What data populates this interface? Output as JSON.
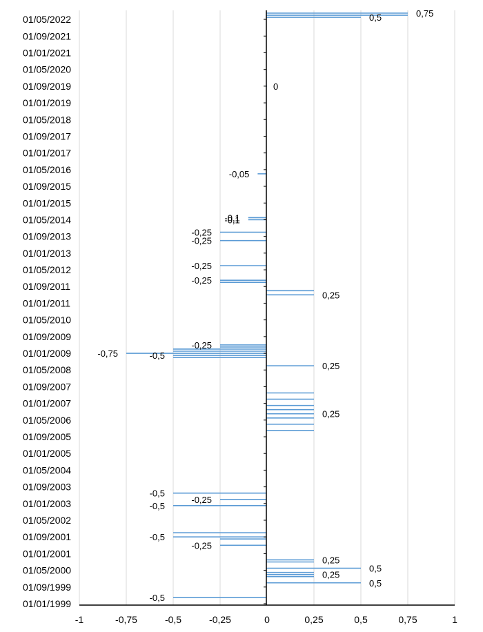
{
  "chart_data": {
    "type": "bar",
    "orientation": "horizontal",
    "title": "",
    "xlabel": "",
    "ylabel": "",
    "xlim": [
      -1,
      1
    ],
    "ylim": [
      "01/01/1999",
      "01/08/2022"
    ],
    "grid": "vertical",
    "legend": "none",
    "colors": {
      "bar": "#5B9BD5",
      "grid": "#D9D9D9",
      "axis": "#000000",
      "text": "#000000"
    },
    "x_tick_labels": [
      "-1",
      "-0,75",
      "-0,5",
      "-0,25",
      "0",
      "0,25",
      "0,5",
      "0,75",
      "1"
    ],
    "y_tick_labels": [
      "01/05/2022",
      "01/09/2021",
      "01/01/2021",
      "01/05/2020",
      "01/09/2019",
      "01/01/2019",
      "01/05/2018",
      "01/09/2017",
      "01/01/2017",
      "01/05/2016",
      "01/09/2015",
      "01/01/2015",
      "01/05/2014",
      "01/09/2013",
      "01/01/2013",
      "01/05/2012",
      "01/09/2011",
      "01/01/2011",
      "01/05/2010",
      "01/09/2009",
      "01/01/2009",
      "01/05/2008",
      "01/09/2007",
      "01/01/2007",
      "01/05/2006",
      "01/09/2005",
      "01/01/2005",
      "01/05/2004",
      "01/09/2003",
      "01/01/2003",
      "01/05/2002",
      "01/09/2001",
      "01/01/2001",
      "01/05/2000",
      "01/09/1999",
      "01/01/1999"
    ],
    "points": [
      {
        "date": "01/08/2022",
        "value": 0.75,
        "label": "0,75"
      },
      {
        "date": "01/07/2022",
        "value": 0.75,
        "label": ""
      },
      {
        "date": "01/06/2022",
        "value": 0.5,
        "label": "0,5"
      },
      {
        "date": "01/09/2019",
        "value": 0,
        "label": "0"
      },
      {
        "date": "01/03/2016",
        "value": -0.05,
        "label": "-0,05"
      },
      {
        "date": "01/06/2014",
        "value": -0.1,
        "label": "-0,1"
      },
      {
        "date": "01/05/2014",
        "value": -0.1,
        "label": "-0,1"
      },
      {
        "date": "01/11/2013",
        "value": -0.25,
        "label": "-0,25"
      },
      {
        "date": "01/07/2013",
        "value": -0.25,
        "label": "-0,25"
      },
      {
        "date": "01/07/2012",
        "value": -0.25,
        "label": "-0,25"
      },
      {
        "date": "01/12/2011",
        "value": -0.25,
        "label": "-0,25"
      },
      {
        "date": "01/11/2011",
        "value": -0.25,
        "label": ""
      },
      {
        "date": "01/07/2011",
        "value": 0.25,
        "label": ""
      },
      {
        "date": "01/05/2011",
        "value": 0.25,
        "label": "0,25"
      },
      {
        "date": "01/05/2009",
        "value": -0.25,
        "label": "-0,25"
      },
      {
        "date": "01/04/2009",
        "value": -0.25,
        "label": ""
      },
      {
        "date": "01/03/2009",
        "value": -0.5,
        "label": ""
      },
      {
        "date": "01/02/2009",
        "value": -0.5,
        "label": ""
      },
      {
        "date": "01/01/2009",
        "value": -0.75,
        "label": "-0,75"
      },
      {
        "date": "01/12/2008",
        "value": -0.5,
        "label": "-0,5"
      },
      {
        "date": "01/11/2008",
        "value": -0.5,
        "label": ""
      },
      {
        "date": "01/07/2008",
        "value": 0.25,
        "label": "0,25"
      },
      {
        "date": "01/06/2007",
        "value": 0.25,
        "label": ""
      },
      {
        "date": "01/03/2007",
        "value": 0.25,
        "label": ""
      },
      {
        "date": "01/12/2006",
        "value": 0.25,
        "label": ""
      },
      {
        "date": "01/10/2006",
        "value": 0.25,
        "label": ""
      },
      {
        "date": "01/08/2006",
        "value": 0.25,
        "label": "0,25"
      },
      {
        "date": "01/06/2006",
        "value": 0.25,
        "label": ""
      },
      {
        "date": "01/03/2006",
        "value": 0.25,
        "label": ""
      },
      {
        "date": "01/12/2005",
        "value": 0.25,
        "label": ""
      },
      {
        "date": "01/06/2003",
        "value": -0.5,
        "label": "-0,5"
      },
      {
        "date": "01/03/2003",
        "value": -0.25,
        "label": "-0,25"
      },
      {
        "date": "01/12/2002",
        "value": -0.5,
        "label": "-0,5"
      },
      {
        "date": "01/11/2001",
        "value": -0.5,
        "label": ""
      },
      {
        "date": "01/09/2001",
        "value": -0.5,
        "label": "-0,5"
      },
      {
        "date": "01/08/2001",
        "value": -0.25,
        "label": ""
      },
      {
        "date": "01/05/2001",
        "value": -0.25,
        "label": "-0,25"
      },
      {
        "date": "01/10/2000",
        "value": 0.25,
        "label": "0,25"
      },
      {
        "date": "01/09/2000",
        "value": 0.25,
        "label": ""
      },
      {
        "date": "01/06/2000",
        "value": 0.5,
        "label": "0,5"
      },
      {
        "date": "01/04/2000",
        "value": 0.25,
        "label": ""
      },
      {
        "date": "01/03/2000",
        "value": 0.25,
        "label": "0,25"
      },
      {
        "date": "01/02/2000",
        "value": 0.25,
        "label": ""
      },
      {
        "date": "01/11/1999",
        "value": 0.5,
        "label": "0,5"
      },
      {
        "date": "01/04/1999",
        "value": -0.5,
        "label": "-0,5"
      }
    ]
  }
}
